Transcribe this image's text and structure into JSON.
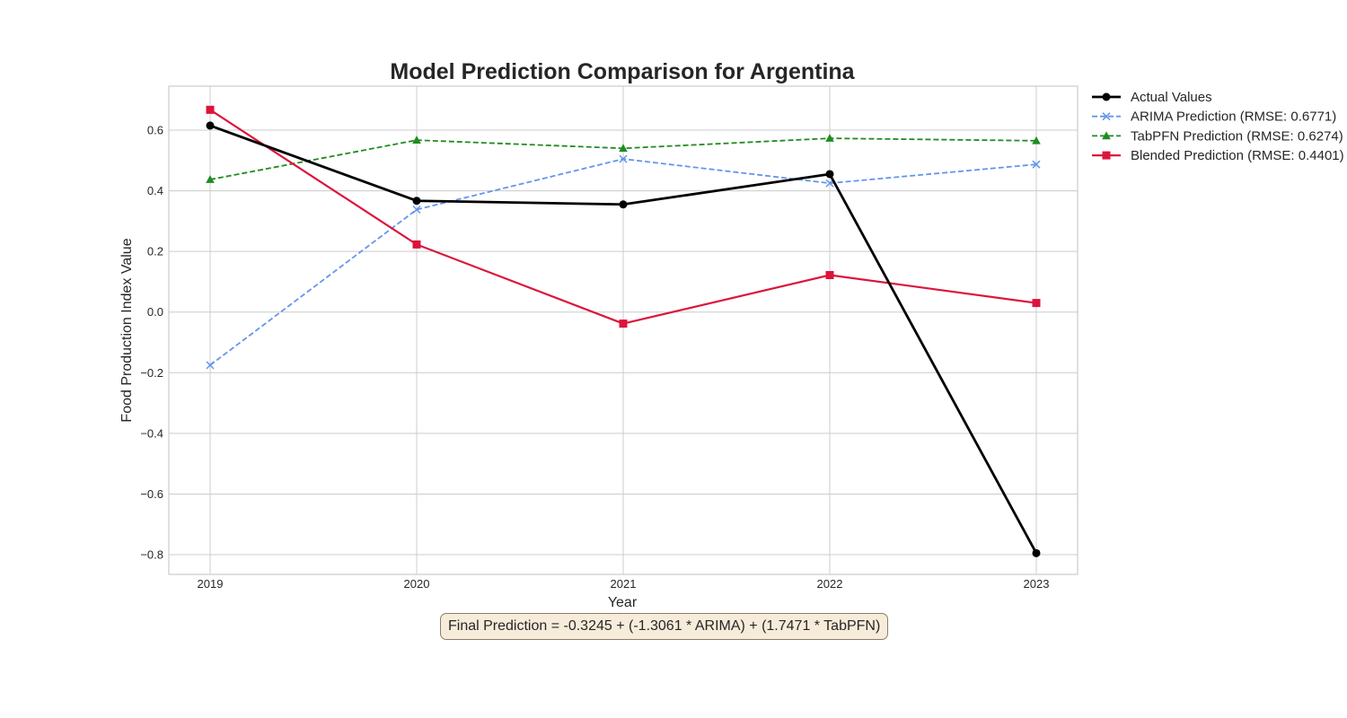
{
  "chart_data": {
    "type": "line",
    "title": "Model Prediction Comparison for Argentina",
    "xlabel": "Year",
    "ylabel": "Food Production Index Value",
    "categories": [
      "2019",
      "2020",
      "2021",
      "2022",
      "2023"
    ],
    "ylim": [
      -0.865,
      0.745
    ],
    "yticks": [
      -0.8,
      -0.6,
      -0.4,
      -0.2,
      0.0,
      0.2,
      0.4,
      0.6
    ],
    "ytick_labels": [
      "−0.8",
      "−0.6",
      "−0.4",
      "−0.2",
      "0.0",
      "0.2",
      "0.4",
      "0.6"
    ],
    "grid": true,
    "legend_position": "outside-right-top",
    "series": [
      {
        "name": "Actual Values",
        "values": [
          0.615,
          0.367,
          0.355,
          0.455,
          -0.795
        ],
        "color": "#000000",
        "dash": "solid",
        "marker": "circle"
      },
      {
        "name": "ARIMA Prediction (RMSE: 0.6771)",
        "values": [
          -0.175,
          0.338,
          0.505,
          0.425,
          0.487
        ],
        "color": "#6495ed",
        "dash": "dashed",
        "marker": "x"
      },
      {
        "name": "TabPFN Prediction (RMSE: 0.6274)",
        "values": [
          0.437,
          0.567,
          0.54,
          0.573,
          0.565
        ],
        "color": "#228b22",
        "dash": "dashed",
        "marker": "triangle"
      },
      {
        "name": "Blended Prediction (RMSE: 0.4401)",
        "values": [
          0.667,
          0.223,
          -0.038,
          0.122,
          0.03
        ],
        "color": "#dc143c",
        "dash": "solid",
        "marker": "square"
      }
    ],
    "annotation": "Final Prediction = -0.3245 + (-1.3061 * ARIMA) + (1.7471 * TabPFN)"
  }
}
